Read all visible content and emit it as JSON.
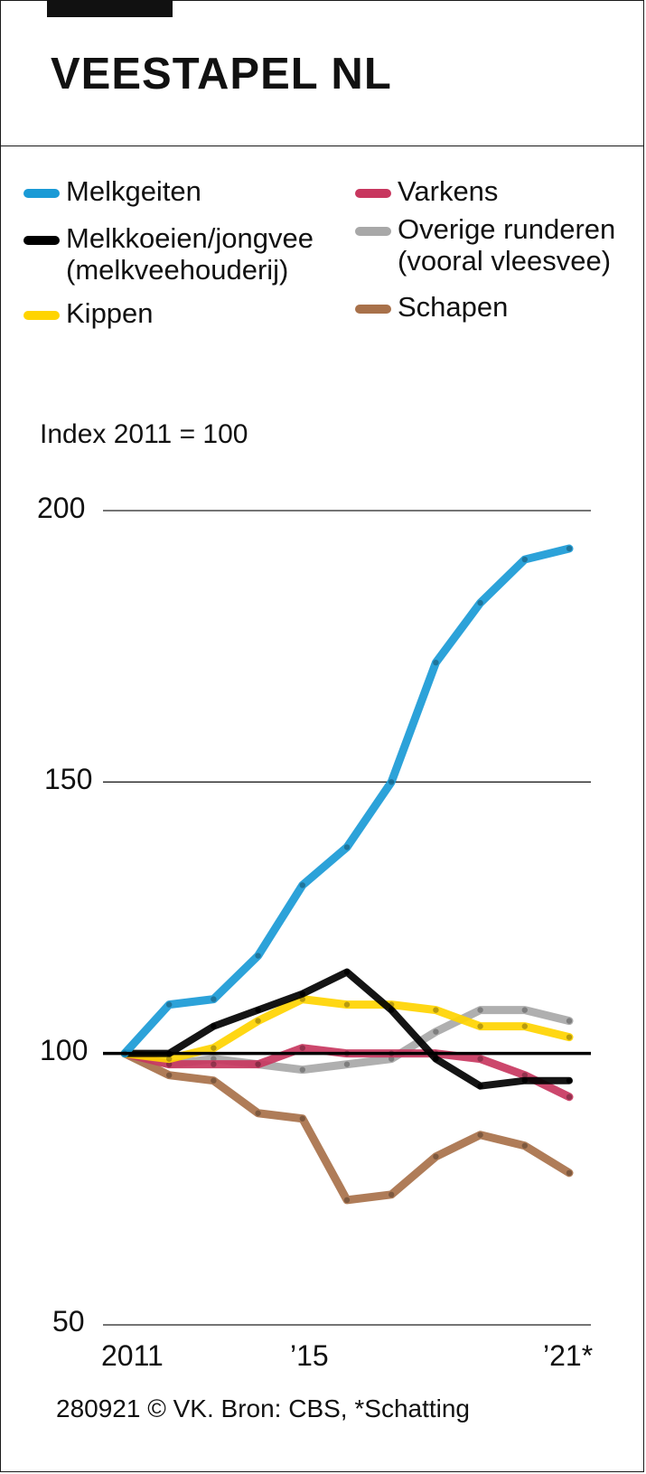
{
  "title": "VEESTAPEL NL",
  "index_label": "Index 2011 = 100",
  "source": "280921 © VK. Bron: CBS, *Schatting",
  "legend": [
    {
      "label": "Melkgeiten",
      "color": "#1a9ad6"
    },
    {
      "label": "Melkkoeien/jongvee",
      "label2": "(melkveehouderij)",
      "color": "#000000"
    },
    {
      "label": "Kippen",
      "color": "#ffd400"
    },
    {
      "label": "Varkens",
      "color": "#c8375f"
    },
    {
      "label": "Overige runderen",
      "label2": "(vooral vleesvee)",
      "color": "#a8a8a8"
    },
    {
      "label": "Schapen",
      "color": "#a8714a"
    }
  ],
  "chart_data": {
    "type": "line",
    "title": "VEESTAPEL NL",
    "ylabel": "Index 2011 = 100",
    "ylim": [
      50,
      200
    ],
    "yticks": [
      "200",
      "150",
      "100",
      "50"
    ],
    "x_tick_labels": [
      "2011",
      "’15",
      "’21*"
    ],
    "x": [
      2011,
      2012,
      2013,
      2014,
      2015,
      2016,
      2017,
      2018,
      2019,
      2020,
      2021
    ],
    "series": [
      {
        "name": "Overige runderen (vooral vleesvee)",
        "color": "#a8a8a8",
        "values": [
          100,
          98,
          99,
          98,
          97,
          98,
          99,
          104,
          108,
          108,
          106
        ]
      },
      {
        "name": "Schapen",
        "color": "#a8714a",
        "values": [
          100,
          96,
          95,
          89,
          88,
          73,
          74,
          81,
          85,
          83,
          78
        ]
      },
      {
        "name": "Varkens",
        "color": "#c8375f",
        "values": [
          100,
          98,
          98,
          98,
          101,
          100,
          100,
          100,
          99,
          96,
          92
        ]
      },
      {
        "name": "Kippen",
        "color": "#ffd400",
        "values": [
          100,
          99,
          101,
          106,
          110,
          109,
          109,
          108,
          105,
          105,
          103
        ]
      },
      {
        "name": "Melkkoeien/jongvee (melkveehouderij)",
        "color": "#000000",
        "values": [
          100,
          100,
          105,
          108,
          111,
          115,
          108,
          99,
          94,
          95,
          95
        ]
      },
      {
        "name": "Melkgeiten",
        "color": "#1a9ad6",
        "values": [
          100,
          109,
          110,
          118,
          131,
          138,
          150,
          172,
          183,
          191,
          193
        ]
      }
    ]
  }
}
